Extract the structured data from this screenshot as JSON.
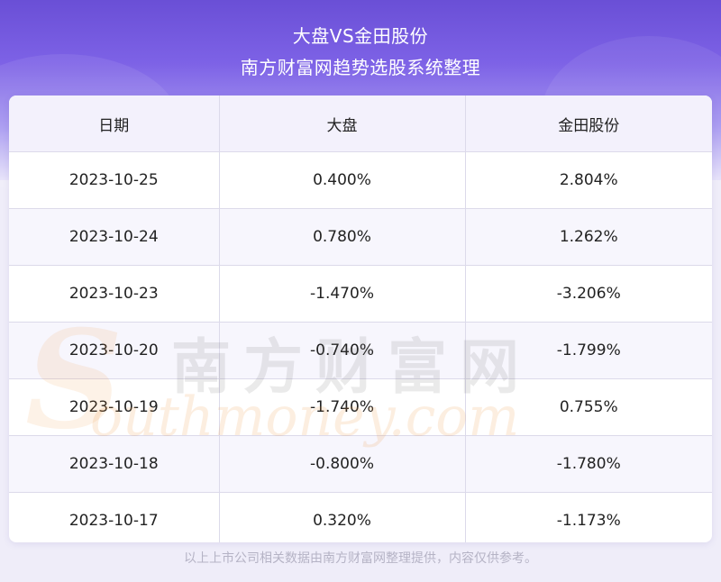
{
  "header": {
    "title": "大盘VS金田股份",
    "subtitle": "南方财富网趋势选股系统整理"
  },
  "table": {
    "columns": [
      "日期",
      "大盘",
      "金田股份"
    ],
    "rows": [
      [
        "2023-10-25",
        "0.400%",
        "2.804%"
      ],
      [
        "2023-10-24",
        "0.780%",
        "1.262%"
      ],
      [
        "2023-10-23",
        "-1.470%",
        "-3.206%"
      ],
      [
        "2023-10-20",
        "-0.740%",
        "-1.799%"
      ],
      [
        "2023-10-19",
        "-1.740%",
        "0.755%"
      ],
      [
        "2023-10-18",
        "-0.800%",
        "-1.780%"
      ],
      [
        "2023-10-17",
        "0.320%",
        "-1.173%"
      ]
    ]
  },
  "watermark": {
    "chinese": "南方财富网",
    "english": "outhmoney.com",
    "initial": "S"
  },
  "footer": {
    "note": "以上上市公司相关数据由南方财富网整理提供，内容仅供参考。"
  },
  "colors": {
    "header_top": "#6a4fd6",
    "header_bottom": "#e6e2fa",
    "table_header_bg": "#f3f1fc",
    "row_alt_bg": "#f7f6fd"
  }
}
